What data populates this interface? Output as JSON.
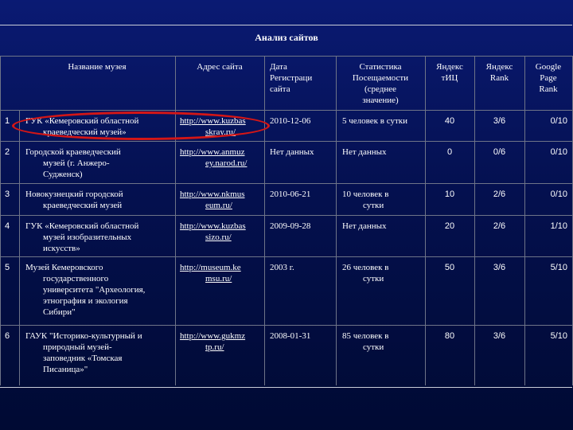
{
  "title": "Анализ сайтов",
  "headers": {
    "name": "Название музея",
    "url": "Адрес сайта",
    "date": [
      "Дата",
      "Регистраци",
      "сайта"
    ],
    "stats": [
      "Статистика",
      "Посещаемости",
      "(среднее",
      "значение)"
    ],
    "tic": [
      "Яндекс",
      "тИЦ"
    ],
    "yrank": [
      "Яндекс",
      "Rank"
    ],
    "prank": [
      "Google",
      "Page",
      "Rank"
    ]
  },
  "rows": [
    {
      "num": "1",
      "name": [
        "ГУК «Кемеровский областной",
        "краеведческий музей»"
      ],
      "url": [
        "http://www.kuzbas",
        "skray.ru/"
      ],
      "date": "2010-12-06",
      "stats": [
        "5 человек в сутки"
      ],
      "tic": "40",
      "yrank": "3/6",
      "prank": "0/10"
    },
    {
      "num": "2",
      "name": [
        "Городской краеведческий",
        "музей (г. Анжеро-",
        "Судженск)"
      ],
      "url": [
        "http://www.anmuz",
        "ey.narod.ru/"
      ],
      "date": "Нет данных",
      "stats": [
        "Нет данных"
      ],
      "tic": "0",
      "yrank": "0/6",
      "prank": "0/10"
    },
    {
      "num": "3",
      "name": [
        "Новокузнецкий городской",
        "краеведческий музей"
      ],
      "url": [
        "http://www.nkmus",
        "eum.ru/"
      ],
      "date": "2010-06-21",
      "stats": [
        "10 человек в",
        "сутки"
      ],
      "tic": "10",
      "yrank": "2/6",
      "prank": "0/10"
    },
    {
      "num": "4",
      "name": [
        "ГУК «Кемеровский областной",
        "музей изобразительных",
        "искусств»"
      ],
      "url": [
        "http://www.kuzbas",
        "sizo.ru/"
      ],
      "date": "2009-09-28",
      "stats": [
        "Нет данных"
      ],
      "tic": "20",
      "yrank": "2/6",
      "prank": "1/10"
    },
    {
      "num": "5",
      "name": [
        "Музей Кемеровского",
        "государственного",
        "университета \"Археология,",
        "этнография и экология",
        "Сибири\""
      ],
      "url": [
        "http://museum.ke",
        "msu.ru/"
      ],
      "date": "2003 г.",
      "stats": [
        "26 человек в",
        "сутки"
      ],
      "tic": "50",
      "yrank": "3/6",
      "prank": "5/10"
    },
    {
      "num": "6",
      "name": [
        "ГАУК \"Историко-культурный и",
        "природный музей-",
        "заповедник «Томская",
        "Писаница»\""
      ],
      "url": [
        "http://www.gukmz",
        "tp.ru/"
      ],
      "date": "2008-01-31",
      "stats": [
        "85 человек в",
        "сутки"
      ],
      "tic": "80",
      "yrank": "3/6",
      "prank": "5/10"
    }
  ]
}
